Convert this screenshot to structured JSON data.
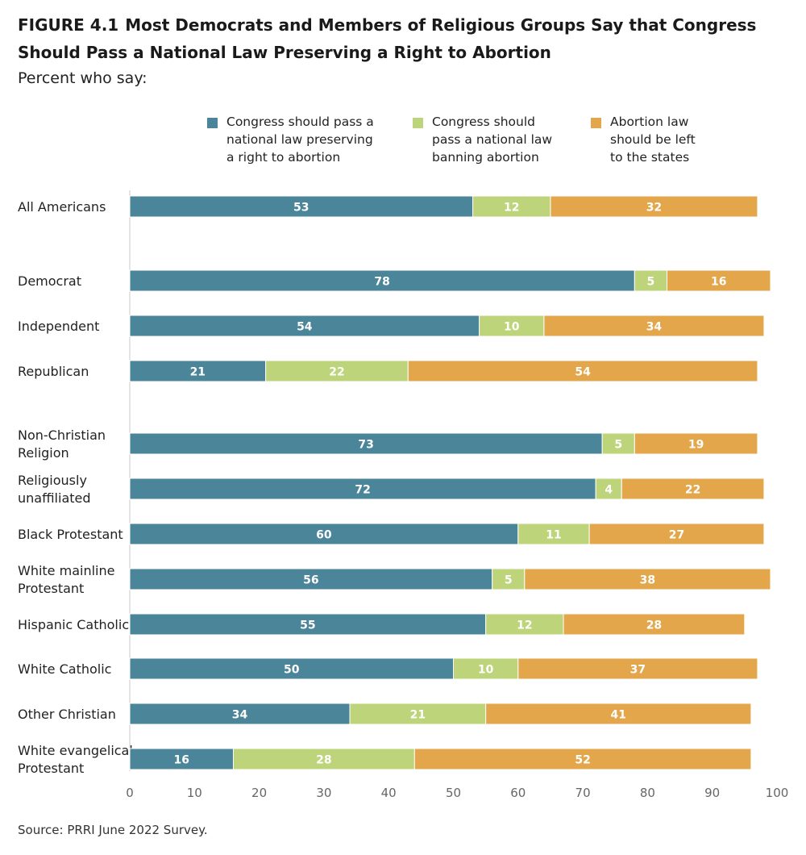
{
  "figure_label": "FIGURE 4.1",
  "title": "Most Democrats and Members of Religious Groups Say that Congress Should Pass a National Law Preserving a Right to Abortion",
  "subtitle": "Percent who say:",
  "source": "Source: PRRI June 2022 Survey.",
  "colors": {
    "preserve": "#4b8599",
    "ban": "#bdd47a",
    "states": "#e3a64b"
  },
  "chart_data": {
    "type": "bar",
    "orientation": "horizontal",
    "stacked": true,
    "title": "Most Democrats and Members of Religious Groups Say that Congress Should Pass a National Law Preserving a Right to Abortion",
    "subtitle": "Percent who say:",
    "xlim": [
      0,
      100
    ],
    "xticks": [
      0,
      10,
      20,
      30,
      40,
      50,
      60,
      70,
      80,
      90,
      100
    ],
    "grid": false,
    "legend_position": "top",
    "categories": [
      "All Americans",
      "Democrat",
      "Independent",
      "Republican",
      "Non-Christian\nReligion",
      "Religiously\nunaffiliated",
      "Black Protestant",
      "White mainline\nProtestant",
      "Hispanic Catholic",
      "White Catholic",
      "Other Christian",
      "White evangelical\nProtestant"
    ],
    "series": [
      {
        "name": "Congress should pass a\nnational law preserving\na right to abortion",
        "color": "#4b8599",
        "values": [
          53,
          78,
          54,
          21,
          73,
          72,
          60,
          56,
          55,
          50,
          34,
          16
        ]
      },
      {
        "name": "Congress should\npass a national law\nbanning abortion",
        "color": "#bdd47a",
        "values": [
          12,
          5,
          10,
          22,
          5,
          4,
          11,
          5,
          12,
          10,
          21,
          28
        ]
      },
      {
        "name": "Abortion law\nshould be left\nto the states",
        "color": "#e3a64b",
        "values": [
          32,
          16,
          34,
          54,
          19,
          22,
          27,
          38,
          28,
          37,
          41,
          52
        ]
      }
    ]
  }
}
